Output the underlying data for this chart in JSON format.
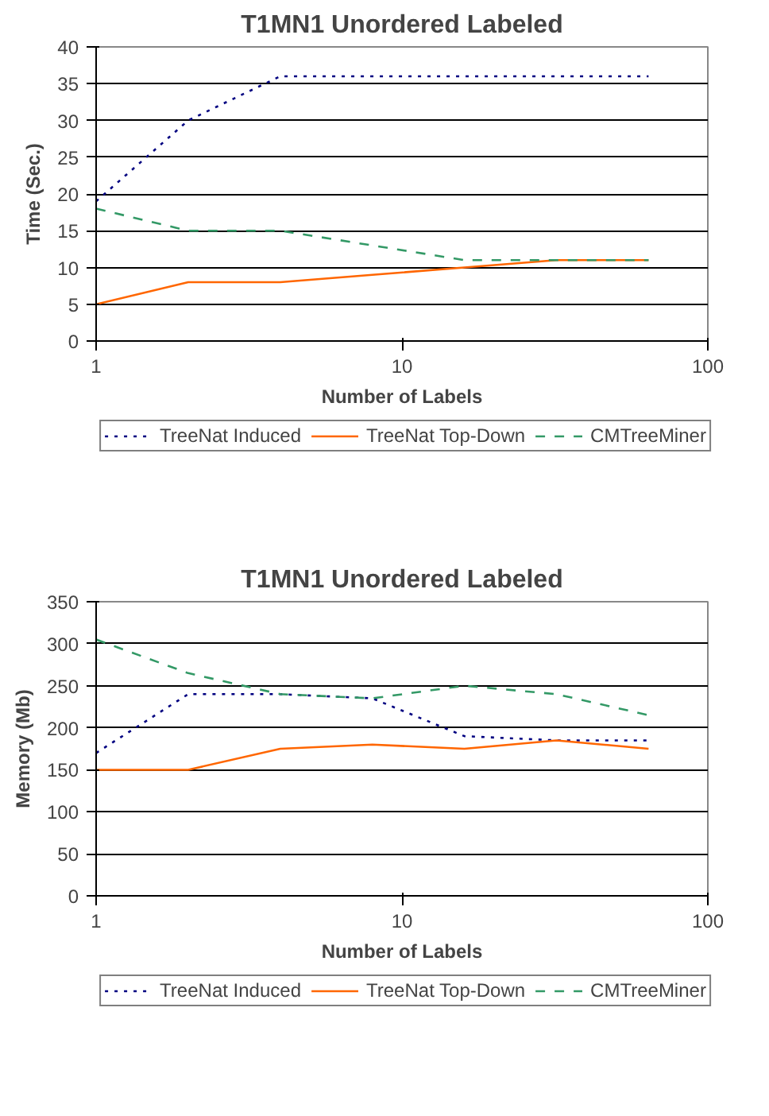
{
  "chart_data": [
    {
      "type": "line",
      "title": "T1MN1 Unordered Labeled",
      "xlabel": "Number of Labels",
      "ylabel": "Time (Sec.)",
      "log": "x",
      "x": [
        1,
        2,
        4,
        8,
        16,
        32,
        64
      ],
      "xlim": [
        1,
        100
      ],
      "xticks": [
        1,
        10,
        100
      ],
      "ylim": [
        0,
        40
      ],
      "yticks": [
        0,
        5,
        10,
        15,
        20,
        25,
        30,
        35,
        40
      ],
      "grid": "y",
      "legend": "bottom",
      "marker": "none",
      "series": [
        {
          "name": "TreeNat Induced",
          "color": "#000080",
          "line_style": "dotted",
          "values": [
            19,
            30,
            36,
            36,
            36,
            36,
            36
          ]
        },
        {
          "name": "TreeNat Top-Down",
          "color": "#ff6600",
          "line_style": "solid",
          "values": [
            5,
            8,
            8,
            9,
            10,
            11,
            11
          ]
        },
        {
          "name": "CMTreeMiner",
          "color": "#339966",
          "line_style": "dashed",
          "values": [
            18,
            15,
            15,
            13,
            11,
            11,
            11
          ]
        }
      ]
    },
    {
      "type": "line",
      "title": "T1MN1 Unordered Labeled",
      "xlabel": "Number of Labels",
      "ylabel": "Memory (Mb)",
      "log": "x",
      "x": [
        1,
        2,
        4,
        8,
        16,
        32,
        64
      ],
      "xlim": [
        1,
        100
      ],
      "xticks": [
        1,
        10,
        100
      ],
      "ylim": [
        0,
        350
      ],
      "yticks": [
        0,
        50,
        100,
        150,
        200,
        250,
        300,
        350
      ],
      "grid": "y",
      "legend": "bottom",
      "marker": "none",
      "series": [
        {
          "name": "TreeNat Induced",
          "color": "#000080",
          "line_style": "dotted",
          "values": [
            170,
            240,
            240,
            235,
            190,
            185,
            185
          ]
        },
        {
          "name": "TreeNat Top-Down",
          "color": "#ff6600",
          "line_style": "solid",
          "values": [
            150,
            150,
            175,
            180,
            175,
            185,
            175
          ]
        },
        {
          "name": "CMTreeMiner",
          "color": "#339966",
          "line_style": "dashed",
          "values": [
            305,
            265,
            240,
            235,
            250,
            240,
            215
          ]
        }
      ]
    }
  ]
}
